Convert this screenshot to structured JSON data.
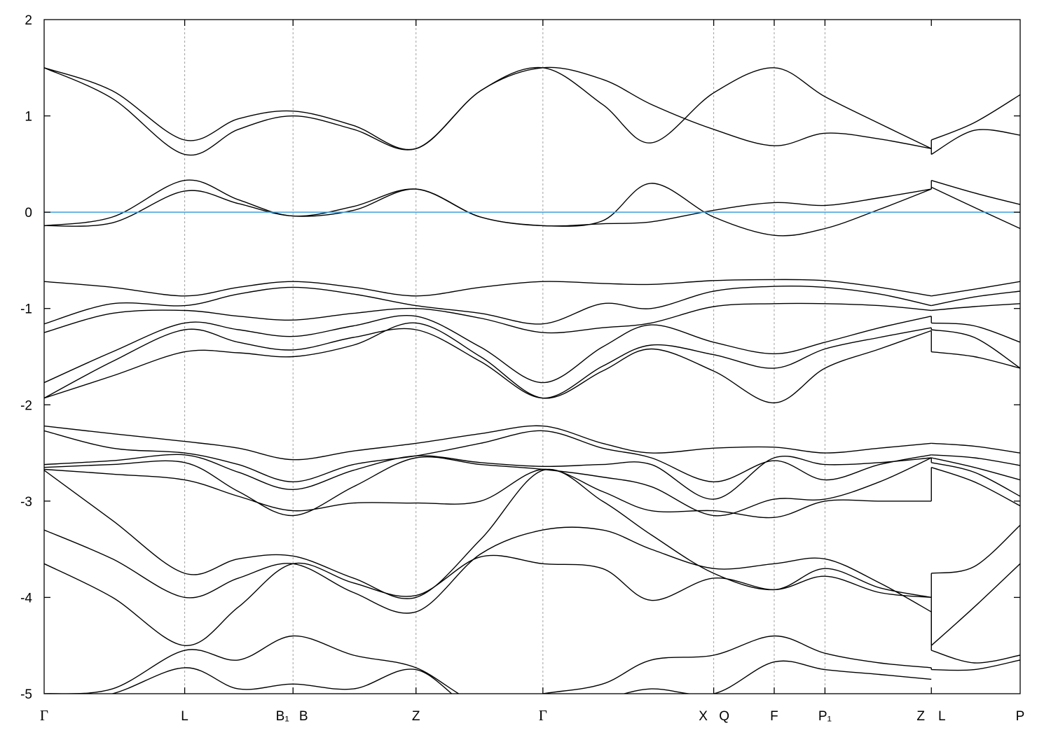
{
  "chart_data": {
    "type": "line",
    "title": "",
    "xlabel": "",
    "ylabel": "",
    "ylim": [
      -5,
      2
    ],
    "xlim": [
      0,
      1
    ],
    "yticks": [
      -5,
      -4,
      -3,
      -2,
      -1,
      0,
      1,
      2
    ],
    "ytick_labels": [
      "-5",
      "-4",
      "-3",
      "-2",
      "-1",
      "0",
      "1",
      "2"
    ],
    "grid": "dashed vertical lines at high-symmetry points",
    "fermi_level": 0,
    "colors": {
      "bands": "#000000",
      "fermi_line": "#3ca0dc",
      "grid": "#a0a0a0"
    },
    "kpoints": [
      {
        "k": 0.0,
        "labels": [
          "Γ"
        ]
      },
      {
        "k": 0.144,
        "labels": [
          "L"
        ]
      },
      {
        "k": 0.255,
        "labels": [
          "B₁",
          "B"
        ]
      },
      {
        "k": 0.381,
        "labels": [
          "Z"
        ]
      },
      {
        "k": 0.511,
        "labels": [
          "Γ"
        ]
      },
      {
        "k": 0.686,
        "labels": [
          "X",
          "Q"
        ]
      },
      {
        "k": 0.748,
        "labels": [
          "F"
        ]
      },
      {
        "k": 0.8,
        "labels": [
          "P₁"
        ]
      },
      {
        "k": 0.909,
        "labels": [
          "Z",
          "L"
        ]
      },
      {
        "k": 1.0,
        "labels": [
          "P"
        ]
      }
    ],
    "segments": [
      {
        "k": [
          0,
          0.07,
          0.144,
          0.199,
          0.255,
          0.317,
          0.381,
          0.447,
          0.511,
          0.572,
          0.622,
          0.686,
          0.748,
          0.8,
          0.856,
          0.909
        ],
        "bands": [
          [
            1.5,
            1.26,
            0.75,
            0.97,
            1.05,
            0.9,
            0.66,
            1.26,
            1.5,
            1.12,
            0.72,
            1.24,
            1.5,
            1.2,
            0.92,
            0.66
          ],
          [
            1.5,
            1.18,
            0.6,
            0.86,
            1.0,
            0.86,
            0.66,
            1.26,
            1.5,
            1.38,
            1.12,
            0.86,
            0.69,
            0.82,
            0.76,
            0.66
          ],
          [
            -0.14,
            -0.05,
            0.33,
            0.13,
            -0.04,
            0.06,
            0.24,
            -0.05,
            -0.14,
            -0.09,
            0.3,
            -0.05,
            -0.24,
            -0.17,
            0.03,
            0.24
          ],
          [
            -0.14,
            -0.11,
            0.22,
            0.09,
            -0.04,
            0.02,
            0.24,
            -0.05,
            -0.14,
            -0.12,
            -0.1,
            0.02,
            0.1,
            0.07,
            0.15,
            0.24
          ],
          [
            -0.72,
            -0.78,
            -0.87,
            -0.78,
            -0.72,
            -0.78,
            -0.87,
            -0.78,
            -0.72,
            -0.74,
            -0.75,
            -0.71,
            -0.7,
            -0.71,
            -0.78,
            -0.87
          ],
          [
            -1.16,
            -0.95,
            -0.97,
            -0.85,
            -0.78,
            -0.85,
            -0.97,
            -1.05,
            -1.16,
            -0.95,
            -1.0,
            -0.82,
            -0.77,
            -0.78,
            -0.85,
            -0.97
          ],
          [
            -1.25,
            -1.05,
            -1.02,
            -1.08,
            -1.12,
            -1.05,
            -1.0,
            -1.1,
            -1.25,
            -1.2,
            -1.15,
            -0.98,
            -0.95,
            -0.95,
            -0.97,
            -1.02
          ],
          [
            -1.77,
            -1.45,
            -1.15,
            -1.22,
            -1.29,
            -1.18,
            -1.08,
            -1.4,
            -1.77,
            -1.4,
            -1.17,
            -1.35,
            -1.47,
            -1.35,
            -1.2,
            -1.08
          ],
          [
            -1.93,
            -1.55,
            -1.22,
            -1.35,
            -1.43,
            -1.3,
            -1.22,
            -1.55,
            -1.93,
            -1.6,
            -1.38,
            -1.48,
            -1.62,
            -1.42,
            -1.3,
            -1.2
          ],
          [
            -1.93,
            -1.7,
            -1.45,
            -1.46,
            -1.5,
            -1.38,
            -1.15,
            -1.5,
            -1.93,
            -1.65,
            -1.42,
            -1.65,
            -1.98,
            -1.62,
            -1.42,
            -1.23
          ],
          [
            -2.22,
            -2.3,
            -2.38,
            -2.45,
            -2.57,
            -2.48,
            -2.4,
            -2.3,
            -2.22,
            -2.4,
            -2.5,
            -2.45,
            -2.44,
            -2.5,
            -2.45,
            -2.4
          ],
          [
            -2.27,
            -2.45,
            -2.5,
            -2.62,
            -2.8,
            -2.62,
            -2.53,
            -2.4,
            -2.27,
            -2.45,
            -2.55,
            -2.8,
            -2.58,
            -2.78,
            -2.62,
            -2.52
          ],
          [
            -2.62,
            -2.58,
            -2.52,
            -2.7,
            -2.88,
            -2.68,
            -2.53,
            -2.6,
            -2.64,
            -2.62,
            -2.62,
            -2.98,
            -2.55,
            -2.62,
            -2.6,
            -2.55
          ],
          [
            -2.65,
            -2.62,
            -2.6,
            -2.9,
            -3.15,
            -2.85,
            -2.55,
            -2.62,
            -2.67,
            -2.75,
            -2.85,
            -3.15,
            -2.98,
            -2.98,
            -2.8,
            -2.55
          ],
          [
            -2.67,
            -2.72,
            -2.78,
            -2.95,
            -3.1,
            -3.02,
            -3.02,
            -3.0,
            -2.67,
            -2.9,
            -3.1,
            -3.1,
            -3.17,
            -3.0,
            -3.0,
            -3.0
          ],
          [
            -2.68,
            -3.2,
            -3.75,
            -3.6,
            -3.57,
            -3.8,
            -4.0,
            -3.4,
            -2.68,
            -3.0,
            -3.35,
            -3.75,
            -3.92,
            -3.7,
            -3.9,
            -4.0
          ],
          [
            -3.3,
            -3.6,
            -4.0,
            -3.8,
            -3.65,
            -3.95,
            -4.15,
            -3.55,
            -3.3,
            -3.3,
            -3.5,
            -3.7,
            -3.65,
            -3.6,
            -3.85,
            -4.15
          ],
          [
            -3.65,
            -4.0,
            -4.5,
            -4.1,
            -3.65,
            -3.85,
            -3.98,
            -3.58,
            -3.65,
            -3.7,
            -4.03,
            -3.8,
            -3.92,
            -3.78,
            -3.95,
            -4.0
          ],
          [
            -5.0,
            -4.95,
            -4.55,
            -4.65,
            -4.4,
            -4.6,
            -4.73,
            -5.1,
            -5.0,
            -4.9,
            -4.65,
            -4.6,
            -4.4,
            -4.58,
            -4.68,
            -4.73
          ],
          [
            -5.1,
            -5.0,
            -4.73,
            -4.95,
            -4.9,
            -4.95,
            -4.75,
            -5.2,
            -5.1,
            -5.05,
            -4.95,
            -5.0,
            -4.67,
            -4.75,
            -4.8,
            -4.85
          ]
        ]
      },
      {
        "k": [
          0.909,
          0.953,
          1.0
        ],
        "bands": [
          [
            0.75,
            0.93,
            1.22
          ],
          [
            0.6,
            0.85,
            0.8
          ],
          [
            0.33,
            0.2,
            0.08
          ],
          [
            0.26,
            0.05,
            -0.17
          ],
          [
            -0.87,
            -0.8,
            -0.72
          ],
          [
            -0.97,
            -0.88,
            -0.82
          ],
          [
            -1.02,
            -0.98,
            -0.95
          ],
          [
            -1.15,
            -1.18,
            -1.35
          ],
          [
            -1.22,
            -1.3,
            -1.62
          ],
          [
            -1.45,
            -1.5,
            -1.62
          ],
          [
            -2.4,
            -2.43,
            -2.5
          ],
          [
            -2.52,
            -2.55,
            -2.63
          ],
          [
            -2.55,
            -2.65,
            -2.78
          ],
          [
            -2.6,
            -2.7,
            -2.95
          ],
          [
            -2.65,
            -2.8,
            -3.05
          ],
          [
            -3.75,
            -3.68,
            -3.25
          ],
          [
            -4.5,
            -4.1,
            -3.65
          ],
          [
            -4.55,
            -4.68,
            -4.6
          ],
          [
            -4.75,
            -4.75,
            -4.65
          ]
        ]
      }
    ]
  }
}
